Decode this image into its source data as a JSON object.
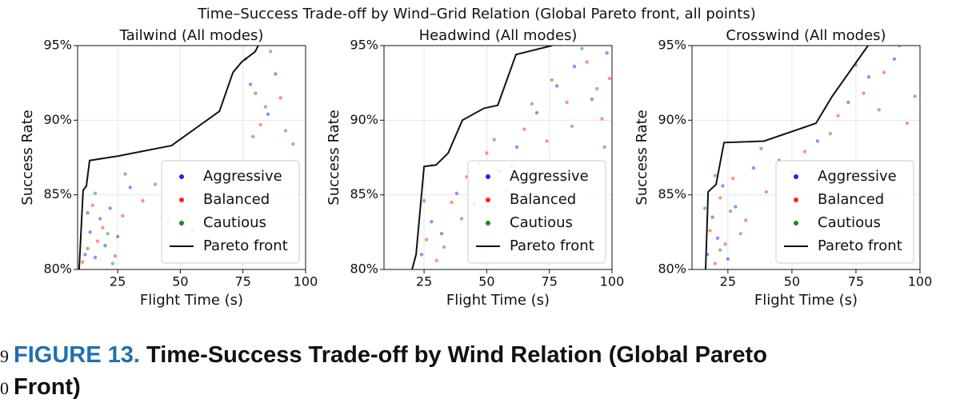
{
  "suptitle": "Time–Success Trade-off by Wind–Grid Relation (Global Pareto front, all points)",
  "chart_data": [
    {
      "type": "scatter",
      "title": "Tailwind (All modes)",
      "xlabel": "Flight Time (s)",
      "ylabel": "Success Rate",
      "xlim": [
        9,
        100
      ],
      "ylim": [
        80,
        95
      ],
      "xticks": [
        25,
        50,
        75,
        100
      ],
      "yticks": [
        {
          "value": 80,
          "label": "80%"
        },
        {
          "value": 85,
          "label": "85%"
        },
        {
          "value": 90,
          "label": "90%"
        },
        {
          "value": 95,
          "label": "95%"
        }
      ],
      "grid": true,
      "legend": "lower right",
      "series": [
        {
          "name": "Aggressive",
          "color": "#1f1fff",
          "marker": "dot",
          "x": [
            12,
            14,
            16,
            18,
            20,
            22,
            13,
            25,
            30,
            85,
            88,
            78
          ],
          "values": [
            81,
            82.5,
            80.8,
            83.4,
            81.6,
            84.1,
            83.8,
            82.2,
            85.5,
            90.4,
            93.1,
            92.4
          ]
        },
        {
          "name": "Balanced",
          "color": "#ff2020",
          "marker": "dot",
          "x": [
            11,
            15,
            17,
            19,
            24,
            27,
            35,
            45,
            82,
            90,
            95,
            76
          ],
          "values": [
            80.5,
            84.3,
            81.9,
            82.8,
            80.9,
            83.6,
            84.6,
            83.2,
            89.7,
            91.5,
            88.4,
            94.1
          ]
        },
        {
          "name": "Cautious",
          "color": "#1a8a1a",
          "marker": "dot",
          "x": [
            13,
            16,
            21,
            23,
            28,
            40,
            55,
            79,
            84,
            92,
            86,
            80
          ],
          "values": [
            81.4,
            85.1,
            82.4,
            80.4,
            86.4,
            85.7,
            82.6,
            88.9,
            90.9,
            89.3,
            94.6,
            91.8
          ]
        },
        {
          "name": "Pareto front",
          "color": "#111111",
          "marker": "line",
          "x": [
            9.6,
            11.2,
            12.5,
            13.8,
            25.2,
            46.5,
            65.6,
            71,
            74.5,
            79.9,
            81.1
          ],
          "values": [
            80,
            85.3,
            85.6,
            87.3,
            87.6,
            88.3,
            90.6,
            93.2,
            93.9,
            94.6,
            95
          ]
        }
      ]
    },
    {
      "type": "scatter",
      "title": "Headwind (All modes)",
      "xlabel": "Flight Time (s)",
      "ylabel": "Success Rate",
      "xlim": [
        9,
        100
      ],
      "ylim": [
        80,
        95
      ],
      "xticks": [
        25,
        50,
        75,
        100
      ],
      "yticks": [
        {
          "value": 80,
          "label": "80%"
        },
        {
          "value": 85,
          "label": "85%"
        },
        {
          "value": 90,
          "label": "90%"
        },
        {
          "value": 95,
          "label": "95%"
        }
      ],
      "grid": true,
      "legend": "lower right",
      "series": [
        {
          "name": "Aggressive",
          "color": "#1f1fff",
          "marker": "dot",
          "x": [
            24,
            28,
            32,
            38,
            45,
            55,
            62,
            70,
            78,
            85,
            92,
            98
          ],
          "values": [
            81,
            83.2,
            82.4,
            85.1,
            84.4,
            86.6,
            88.2,
            90.5,
            92.3,
            93.6,
            91.4,
            94.5
          ]
        },
        {
          "name": "Balanced",
          "color": "#ff2020",
          "marker": "dot",
          "x": [
            26,
            30,
            36,
            42,
            50,
            58,
            65,
            74,
            82,
            90,
            96,
            99
          ],
          "values": [
            82,
            80.6,
            84.5,
            86.2,
            87.8,
            85.3,
            89.4,
            88.6,
            91.2,
            93.9,
            90.1,
            92.8
          ]
        },
        {
          "name": "Cautious",
          "color": "#1a8a1a",
          "marker": "dot",
          "x": [
            25,
            33,
            40,
            47,
            53,
            60,
            68,
            76,
            84,
            88,
            94,
            97
          ],
          "values": [
            84.6,
            81.5,
            83.4,
            87.1,
            88.7,
            86.9,
            91.1,
            92.7,
            89.6,
            94.8,
            92.1,
            88.2
          ]
        },
        {
          "name": "Pareto front",
          "color": "#111111",
          "marker": "line",
          "x": [
            20.2,
            21.8,
            25,
            29.8,
            34.6,
            40.3,
            48.9,
            54.4,
            61.7,
            76.1
          ],
          "values": [
            80,
            81,
            86.9,
            87,
            87.8,
            90,
            90.8,
            91,
            94.4,
            95
          ]
        }
      ]
    },
    {
      "type": "scatter",
      "title": "Crosswind (All modes)",
      "xlabel": "Flight Time (s)",
      "ylabel": "Success Rate",
      "xlim": [
        11,
        100
      ],
      "ylim": [
        80,
        95
      ],
      "xticks": [
        25,
        50,
        75,
        100
      ],
      "yticks": [
        {
          "value": 80,
          "label": "80%"
        },
        {
          "value": 85,
          "label": "85%"
        },
        {
          "value": 90,
          "label": "90%"
        },
        {
          "value": 95,
          "label": "95%"
        }
      ],
      "grid": true,
      "legend": "lower right",
      "series": [
        {
          "name": "Aggressive",
          "color": "#1f1fff",
          "marker": "dot",
          "x": [
            17,
            19,
            21,
            23,
            25,
            28,
            35,
            45,
            60,
            72,
            80,
            90
          ],
          "values": [
            81,
            83.5,
            82.1,
            85.6,
            80.7,
            84.2,
            86.8,
            87.3,
            88.6,
            91.2,
            92.9,
            94.1
          ]
        },
        {
          "name": "Balanced",
          "color": "#ff2020",
          "marker": "dot",
          "x": [
            18,
            20,
            22,
            24,
            27,
            32,
            40,
            55,
            68,
            78,
            86,
            95
          ],
          "values": [
            82.6,
            80.4,
            84.8,
            81.7,
            86.1,
            83.3,
            85.2,
            87.9,
            90.3,
            91.8,
            93.2,
            89.8
          ]
        },
        {
          "name": "Cautious",
          "color": "#1a8a1a",
          "marker": "dot",
          "x": [
            16,
            20,
            22,
            26,
            30,
            38,
            50,
            65,
            75,
            84,
            92,
            98
          ],
          "values": [
            84.1,
            86.3,
            81.3,
            83.9,
            82.4,
            88.1,
            86.5,
            89.1,
            93.7,
            90.7,
            95,
            91.6
          ]
        },
        {
          "name": "Pareto front",
          "color": "#111111",
          "marker": "line",
          "x": [
            16.3,
            17.3,
            20.4,
            23.5,
            39.1,
            59.4,
            65.7,
            79.7
          ],
          "values": [
            80,
            85.2,
            85.7,
            88.5,
            88.6,
            89.8,
            91.6,
            95
          ]
        }
      ]
    }
  ],
  "caption": {
    "line_numbers": [
      "9",
      "0"
    ],
    "label": "FIGURE 13.",
    "text_lines": [
      "Time-Success Trade-off by Wind Relation (Global Pareto",
      "Front)"
    ]
  }
}
